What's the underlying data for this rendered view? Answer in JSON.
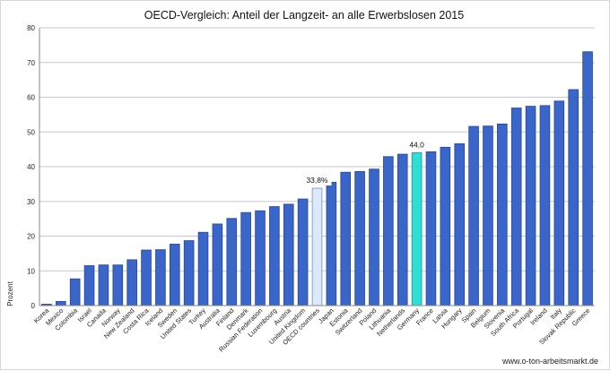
{
  "chart_data": {
    "type": "bar",
    "title": "OECD-Vergleich: Anteil der Langzeit- an alle Erwerbslosen 2015",
    "ylabel": "Prozent",
    "xlabel": "",
    "ylim": [
      0,
      80
    ],
    "yticks": [
      0,
      10,
      20,
      30,
      40,
      50,
      60,
      70,
      80
    ],
    "grid": true,
    "categories": [
      "Korea",
      "Mexico",
      "Colombia",
      "Israel",
      "Canada",
      "Norway",
      "New Zealand",
      "Costa Rica",
      "Iceland",
      "Sweden",
      "United States",
      "Turkey",
      "Australia",
      "Finland",
      "Denmark",
      "Russian Federation",
      "Luxembourg",
      "Austria",
      "United Kingdom",
      "OECD countries",
      "Japan",
      "Estonia",
      "Switzerland",
      "Poland",
      "Lithuania",
      "Netherlands",
      "Germany",
      "France",
      "Latvia",
      "Hungary",
      "Spain",
      "Belgium",
      "Slovenia",
      "South Africa",
      "Portugal",
      "Ireland",
      "Italy",
      "Slovak Republic",
      "Greece"
    ],
    "values": [
      0.4,
      1.2,
      7.7,
      11.5,
      11.7,
      11.7,
      13.2,
      16.0,
      16.1,
      17.7,
      18.7,
      21.1,
      23.5,
      25.1,
      26.8,
      27.3,
      28.5,
      29.2,
      30.7,
      33.8,
      35.5,
      38.4,
      38.6,
      39.3,
      42.9,
      43.6,
      44.0,
      44.3,
      45.6,
      46.6,
      51.6,
      51.7,
      52.3,
      56.9,
      57.4,
      57.6,
      58.9,
      62.2,
      73.1
    ],
    "bar_styles": [
      "normal",
      "normal",
      "normal",
      "normal",
      "normal",
      "normal",
      "normal",
      "normal",
      "normal",
      "normal",
      "normal",
      "normal",
      "normal",
      "normal",
      "normal",
      "normal",
      "normal",
      "normal",
      "normal",
      "oecd",
      "normal",
      "normal",
      "normal",
      "normal",
      "normal",
      "normal",
      "germany",
      "normal",
      "normal",
      "normal",
      "normal",
      "normal",
      "normal",
      "normal",
      "normal",
      "normal",
      "normal",
      "normal",
      "normal"
    ],
    "annotations": [
      {
        "category": "OECD countries",
        "text": "33,8%"
      },
      {
        "category": "Germany",
        "text": "44,0"
      }
    ],
    "colors": {
      "normal_fill": "#3A65C9",
      "normal_stroke": "#26479A",
      "oecd_fill": "#DCE9FA",
      "oecd_stroke": "#6E8FC8",
      "germany_fill": "#2EDFD5",
      "germany_stroke": "#1E8A92",
      "grid": "#c8c8c8"
    }
  },
  "source": "www.o-ton-arbeitsmarkt.de"
}
